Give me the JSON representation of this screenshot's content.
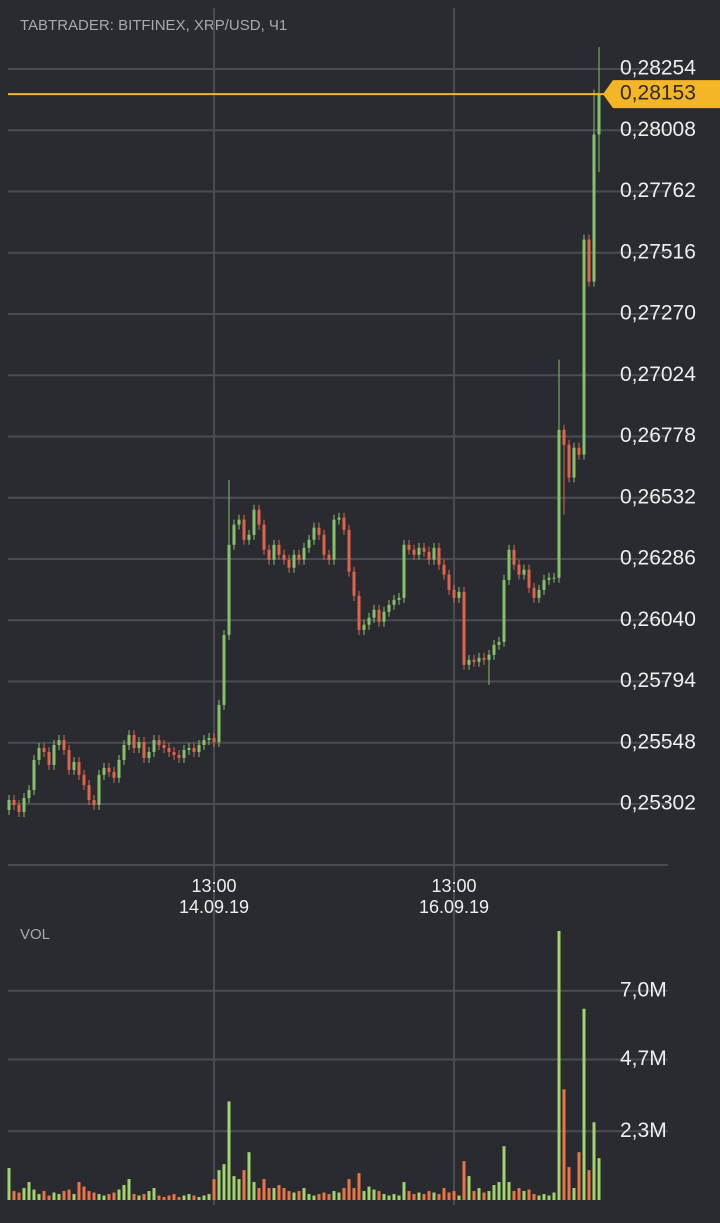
{
  "chart_data": {
    "type": "candlestick",
    "title": "TABTRADER: BITFINEX, XRP/USD, Ч1",
    "volume_title": "VOL",
    "up_color": "#86c06a",
    "down_color": "#e2634c",
    "volume_up_color": "#a3d36b",
    "volume_down_color": "#ec7447",
    "last_price_color": "#f4b526",
    "grid": true,
    "categories": [
      null,
      null,
      null,
      null,
      null,
      null,
      null,
      null,
      null,
      null,
      null,
      null,
      null,
      null,
      null,
      null,
      null,
      null,
      null,
      null,
      null,
      null,
      null,
      null,
      null,
      null,
      null,
      null,
      null,
      null,
      null,
      null,
      null,
      null,
      null,
      null,
      null,
      null,
      null,
      null,
      null,
      "13:00",
      null,
      null,
      null,
      null,
      null,
      null,
      null,
      null,
      null,
      null,
      null,
      null,
      null,
      null,
      null,
      null,
      null,
      null,
      null,
      null,
      null,
      null,
      null,
      null,
      null,
      null,
      null,
      null,
      null,
      null,
      null,
      null,
      null,
      null,
      null,
      null,
      null,
      null,
      null,
      null,
      null,
      null,
      null,
      null,
      null,
      null,
      null,
      "13:00",
      null,
      null,
      null,
      null,
      null,
      null,
      null,
      null,
      null,
      null,
      null,
      null,
      null,
      null,
      null,
      null,
      null,
      null,
      null,
      null,
      null,
      null,
      null,
      null,
      null,
      null,
      null,
      null,
      null
    ],
    "category_dates": [
      null,
      null,
      null,
      null,
      null,
      null,
      null,
      null,
      null,
      null,
      null,
      null,
      null,
      null,
      null,
      null,
      null,
      null,
      null,
      null,
      null,
      null,
      null,
      null,
      null,
      null,
      null,
      null,
      null,
      null,
      null,
      null,
      null,
      null,
      null,
      null,
      null,
      null,
      null,
      null,
      null,
      "14.09.19",
      null,
      null,
      null,
      null,
      null,
      null,
      null,
      null,
      null,
      null,
      null,
      null,
      null,
      null,
      null,
      null,
      null,
      null,
      null,
      null,
      null,
      null,
      null,
      null,
      null,
      null,
      null,
      null,
      null,
      null,
      null,
      null,
      null,
      null,
      null,
      null,
      null,
      null,
      null,
      null,
      null,
      null,
      null,
      null,
      null,
      null,
      null,
      "16.09.19",
      null,
      null,
      null,
      null,
      null,
      null,
      null,
      null,
      null,
      null,
      null,
      null,
      null,
      null,
      null,
      null,
      null,
      null,
      null,
      null,
      null,
      null,
      null,
      null,
      null,
      null,
      null,
      null,
      null
    ],
    "open": [
      0.25278,
      0.25318,
      0.25298,
      0.2527,
      0.25326,
      0.25358,
      0.25479,
      0.25527,
      0.25511,
      0.25459,
      0.25539,
      0.25559,
      0.25519,
      0.25439,
      0.25471,
      0.25419,
      0.25378,
      0.25318,
      0.25298,
      0.25419,
      0.25447,
      0.25431,
      0.25407,
      0.25479,
      0.25539,
      0.25579,
      0.25527,
      0.25551,
      0.25487,
      0.25511,
      0.25559,
      0.25539,
      0.25527,
      0.25511,
      0.25499,
      0.25487,
      0.25519,
      0.25527,
      0.25511,
      0.25539,
      0.25559,
      0.25567,
      0.25551,
      0.257,
      0.25981,
      0.26343,
      0.26424,
      0.26444,
      0.26363,
      0.26383,
      0.26484,
      0.26424,
      0.26323,
      0.26283,
      0.26343,
      0.26303,
      0.26283,
      0.26251,
      0.26303,
      0.26283,
      0.26331,
      0.26363,
      0.26412,
      0.26383,
      0.26303,
      0.26283,
      0.26444,
      0.26452,
      0.26403,
      0.26235,
      0.26138,
      0.26001,
      0.26022,
      0.2605,
      0.26082,
      0.26034,
      0.26074,
      0.26102,
      0.26122,
      0.2613,
      0.26343,
      0.26323,
      0.26303,
      0.26331,
      0.26315,
      0.26283,
      0.26331,
      0.26263,
      0.26223,
      0.26162,
      0.2613,
      0.26154,
      0.25861,
      0.25881,
      0.25873,
      0.25889,
      0.25881,
      0.25901,
      0.25941,
      0.25953,
      0.26202,
      0.26323,
      0.26263,
      0.26223,
      0.26243,
      0.2617,
      0.2613,
      0.26162,
      0.26202,
      0.26211,
      0.26211,
      0.26805,
      0.26745,
      0.26613,
      0.26733,
      0.26705,
      0.27569,
      0.274,
      0.27991
    ],
    "high": [
      0.25338,
      0.25338,
      0.25318,
      0.25346,
      0.25378,
      0.25499,
      0.25547,
      0.25547,
      0.25531,
      0.25559,
      0.25579,
      0.25579,
      0.25539,
      0.25491,
      0.25491,
      0.25439,
      0.25398,
      0.25338,
      0.25439,
      0.25467,
      0.25467,
      0.25451,
      0.25499,
      0.25559,
      0.25599,
      0.25599,
      0.25571,
      0.25571,
      0.25531,
      0.25579,
      0.25579,
      0.25559,
      0.25547,
      0.25531,
      0.25519,
      0.25539,
      0.25547,
      0.25547,
      0.25559,
      0.25579,
      0.25587,
      0.25587,
      0.2572,
      0.26001,
      0.26604,
      0.26444,
      0.26464,
      0.26464,
      0.26403,
      0.26504,
      0.26504,
      0.26444,
      0.26343,
      0.26363,
      0.26363,
      0.26323,
      0.26303,
      0.26323,
      0.26323,
      0.26351,
      0.26383,
      0.26432,
      0.26432,
      0.26403,
      0.26323,
      0.26464,
      0.26472,
      0.26472,
      0.26423,
      0.26255,
      0.26158,
      0.26042,
      0.2607,
      0.26102,
      0.26102,
      0.26094,
      0.26122,
      0.26142,
      0.2615,
      0.26363,
      0.26363,
      0.26343,
      0.26351,
      0.26351,
      0.26335,
      0.26351,
      0.26351,
      0.26283,
      0.26243,
      0.26182,
      0.26174,
      0.26174,
      0.25901,
      0.25901,
      0.25909,
      0.25909,
      0.25921,
      0.25961,
      0.25973,
      0.26222,
      0.26343,
      0.26343,
      0.26283,
      0.26263,
      0.26263,
      0.2619,
      0.26182,
      0.26222,
      0.26231,
      0.26231,
      0.27087,
      0.26825,
      0.26765,
      0.26753,
      0.26753,
      0.27589,
      0.27589,
      0.28171,
      0.28342
    ],
    "low": [
      0.25258,
      0.25278,
      0.2525,
      0.2525,
      0.25306,
      0.25338,
      0.25459,
      0.25491,
      0.25439,
      0.25439,
      0.25519,
      0.25499,
      0.25419,
      0.25419,
      0.25399,
      0.25358,
      0.25298,
      0.25278,
      0.25278,
      0.25399,
      0.25411,
      0.25387,
      0.25387,
      0.25459,
      0.25519,
      0.25507,
      0.25507,
      0.25467,
      0.25467,
      0.25491,
      0.25519,
      0.25507,
      0.25491,
      0.25479,
      0.25467,
      0.25467,
      0.25499,
      0.25491,
      0.25491,
      0.25519,
      0.25539,
      0.25531,
      0.25531,
      0.2568,
      0.25961,
      0.26323,
      0.26404,
      0.26343,
      0.26343,
      0.26363,
      0.26404,
      0.26303,
      0.26263,
      0.26263,
      0.26283,
      0.26263,
      0.26231,
      0.26231,
      0.26263,
      0.26263,
      0.26311,
      0.26343,
      0.26363,
      0.26283,
      0.26263,
      0.26263,
      0.26424,
      0.26383,
      0.26215,
      0.26118,
      0.25981,
      0.25981,
      0.26002,
      0.2603,
      0.26014,
      0.26014,
      0.26054,
      0.26082,
      0.26102,
      0.2611,
      0.26303,
      0.26283,
      0.26283,
      0.26295,
      0.26263,
      0.26263,
      0.26243,
      0.26203,
      0.26142,
      0.2611,
      0.2611,
      0.25841,
      0.25841,
      0.25853,
      0.25853,
      0.25861,
      0.2578,
      0.25881,
      0.25921,
      0.25933,
      0.26182,
      0.26243,
      0.26203,
      0.26203,
      0.2615,
      0.2611,
      0.2611,
      0.26142,
      0.26182,
      0.26191,
      0.26191,
      0.26464,
      0.26593,
      0.26593,
      0.26685,
      0.26685,
      0.2738,
      0.2738,
      0.2784
    ],
    "close": [
      0.25318,
      0.25298,
      0.2527,
      0.25326,
      0.25358,
      0.25479,
      0.25527,
      0.25511,
      0.25459,
      0.25539,
      0.25559,
      0.25519,
      0.25439,
      0.25471,
      0.25419,
      0.25378,
      0.25318,
      0.25298,
      0.25419,
      0.25447,
      0.25431,
      0.25407,
      0.25479,
      0.25539,
      0.25579,
      0.25527,
      0.25551,
      0.25487,
      0.25511,
      0.25559,
      0.25539,
      0.25527,
      0.25511,
      0.25499,
      0.25487,
      0.25519,
      0.25527,
      0.25511,
      0.25539,
      0.25559,
      0.25567,
      0.25551,
      0.257,
      0.25981,
      0.26343,
      0.26424,
      0.26444,
      0.26363,
      0.26383,
      0.26484,
      0.26424,
      0.26323,
      0.26283,
      0.26343,
      0.26303,
      0.26283,
      0.26251,
      0.26303,
      0.26283,
      0.26331,
      0.26363,
      0.26412,
      0.26383,
      0.26303,
      0.26283,
      0.26444,
      0.26452,
      0.26403,
      0.26235,
      0.26138,
      0.26001,
      0.26022,
      0.2605,
      0.26082,
      0.26034,
      0.26074,
      0.26102,
      0.26122,
      0.2613,
      0.26343,
      0.26323,
      0.26303,
      0.26331,
      0.26315,
      0.26283,
      0.26331,
      0.26263,
      0.26223,
      0.26162,
      0.2613,
      0.26154,
      0.25861,
      0.25881,
      0.25873,
      0.25889,
      0.25881,
      0.25901,
      0.25941,
      0.25953,
      0.26202,
      0.26323,
      0.26263,
      0.26223,
      0.26243,
      0.2617,
      0.2613,
      0.26162,
      0.26202,
      0.26211,
      0.26211,
      0.26805,
      0.26745,
      0.26613,
      0.26733,
      0.26705,
      0.27569,
      0.274,
      0.27991,
      0.28153
    ],
    "volume": [
      1070000,
      300000,
      250000,
      400000,
      600000,
      350000,
      200000,
      300000,
      150000,
      250000,
      200000,
      300000,
      350000,
      200000,
      600000,
      450000,
      300000,
      250000,
      200000,
      150000,
      200000,
      250000,
      350000,
      500000,
      700000,
      200000,
      150000,
      200000,
      300000,
      400000,
      150000,
      100000,
      150000,
      200000,
      100000,
      150000,
      200000,
      150000,
      100000,
      150000,
      200000,
      700000,
      1000000,
      1200000,
      3300000,
      800000,
      700000,
      1000000,
      1600000,
      600000,
      400000,
      700000,
      400000,
      400000,
      500000,
      400000,
      300000,
      250000,
      300000,
      400000,
      200000,
      150000,
      200000,
      250000,
      200000,
      300000,
      250000,
      400000,
      700000,
      400000,
      900000,
      300000,
      450000,
      350000,
      300000,
      200000,
      150000,
      200000,
      150000,
      600000,
      300000,
      200000,
      250000,
      200000,
      300000,
      250000,
      200000,
      400000,
      250000,
      300000,
      150000,
      1300000,
      800000,
      300000,
      400000,
      250000,
      300000,
      500000,
      600000,
      1800000,
      600000,
      300000,
      400000,
      300000,
      350000,
      200000,
      150000,
      200000,
      150000,
      250000,
      9000000,
      3700000,
      1100000,
      400000,
      1600000,
      6400000,
      1000000,
      2600000,
      1400000
    ],
    "ylim": [
      0.25057,
      0.28499
    ],
    "yticks": [
      {
        "value": 0.25302,
        "label": "0,25302"
      },
      {
        "value": 0.25548,
        "label": "0,25548"
      },
      {
        "value": 0.25794,
        "label": "0,25794"
      },
      {
        "value": 0.2604,
        "label": "0,26040"
      },
      {
        "value": 0.26286,
        "label": "0,26286"
      },
      {
        "value": 0.26532,
        "label": "0,26532"
      },
      {
        "value": 0.26778,
        "label": "0,26778"
      },
      {
        "value": 0.27024,
        "label": "0,27024"
      },
      {
        "value": 0.2727,
        "label": "0,27270"
      },
      {
        "value": 0.27516,
        "label": "0,27516"
      },
      {
        "value": 0.27762,
        "label": "0,27762"
      },
      {
        "value": 0.28008,
        "label": "0,28008"
      },
      {
        "value": 0.28254,
        "label": "0,28254"
      }
    ],
    "last_price": {
      "value": 0.28153,
      "label": "0,28153"
    },
    "volume_ylim": [
      0,
      9200000
    ],
    "volume_yticks": [
      {
        "value": 2300000,
        "label": "2,3M"
      },
      {
        "value": 4700000,
        "label": "4,7M"
      },
      {
        "value": 7000000,
        "label": "7,0M"
      }
    ]
  }
}
